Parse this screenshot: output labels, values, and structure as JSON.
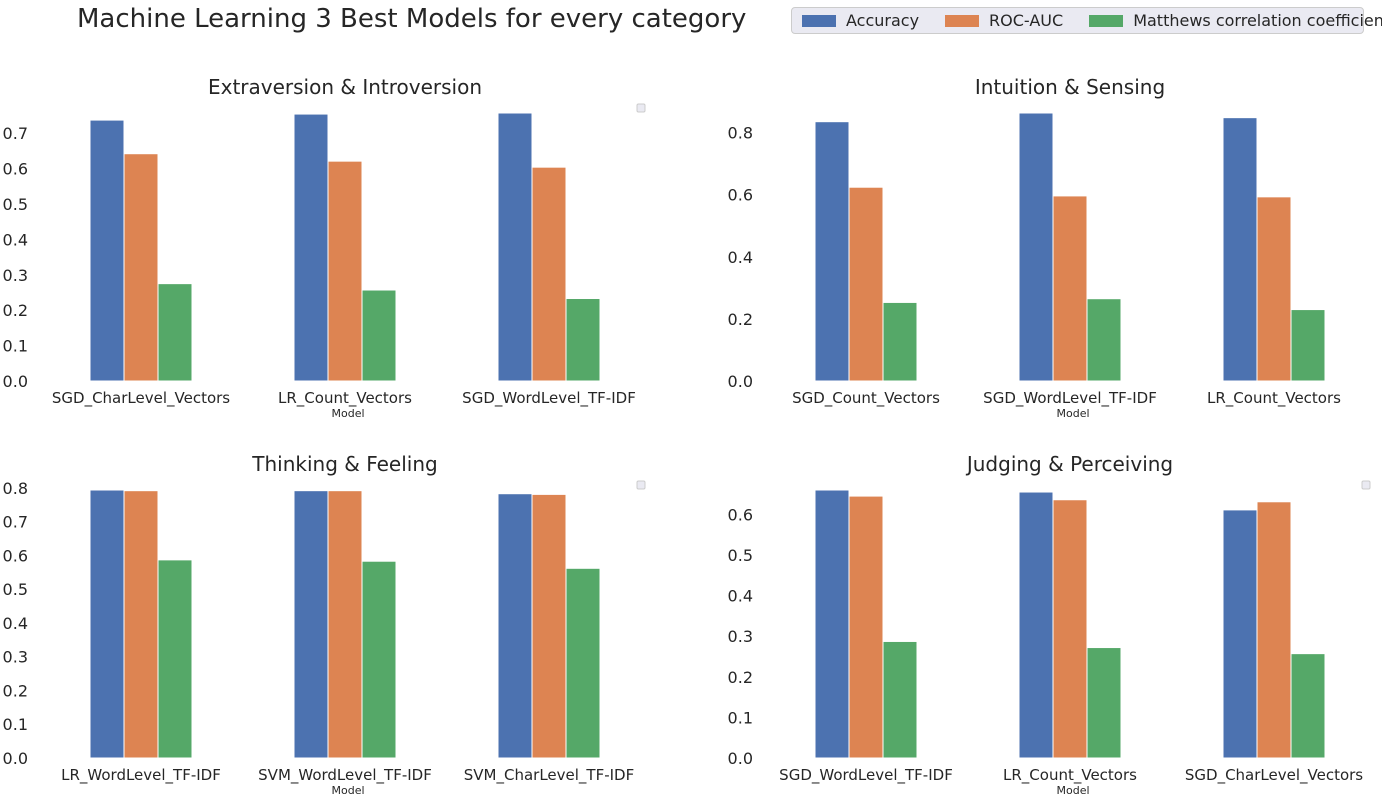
{
  "title": "Machine Learning 3 Best Models for every category",
  "legend": {
    "items": [
      {
        "label": "Accuracy",
        "color": "#4c72b0"
      },
      {
        "label": "ROC-AUC",
        "color": "#dd8452"
      },
      {
        "label": "Matthews correlation coefficient",
        "color": "#55a868"
      }
    ]
  },
  "chart_data": [
    {
      "type": "bar",
      "title": "Extraversion & Introversion",
      "xlabel": "Model",
      "categories": [
        "SGD_CharLevel_Vectors",
        "LR_Count_Vectors",
        "SGD_WordLevel_TF-IDF"
      ],
      "series": [
        {
          "name": "Accuracy",
          "values": [
            0.737,
            0.754,
            0.757
          ]
        },
        {
          "name": "ROC-AUC",
          "values": [
            0.642,
            0.621,
            0.604
          ]
        },
        {
          "name": "Matthews correlation coefficient",
          "values": [
            0.275,
            0.257,
            0.233
          ]
        }
      ],
      "ylim": [
        0,
        0.757
      ],
      "yticks": [
        0.0,
        0.1,
        0.2,
        0.3,
        0.4,
        0.5,
        0.6,
        0.7
      ],
      "ytick_labels": [
        "0.0",
        "0.1",
        "0.2",
        "0.3",
        "0.4",
        "0.5",
        "0.6",
        "0.7"
      ]
    },
    {
      "type": "bar",
      "title": "Intuition & Sensing",
      "xlabel": "Model",
      "categories": [
        "SGD_Count_Vectors",
        "SGD_WordLevel_TF-IDF",
        "LR_Count_Vectors"
      ],
      "series": [
        {
          "name": "Accuracy",
          "values": [
            0.835,
            0.863,
            0.848
          ]
        },
        {
          "name": "ROC-AUC",
          "values": [
            0.624,
            0.596,
            0.593
          ]
        },
        {
          "name": "Matthews correlation coefficient",
          "values": [
            0.253,
            0.265,
            0.23
          ]
        }
      ],
      "ylim": [
        0,
        0.863
      ],
      "yticks": [
        0.0,
        0.2,
        0.4,
        0.6,
        0.8
      ],
      "ytick_labels": [
        "0.0",
        "0.2",
        "0.4",
        "0.6",
        "0.8"
      ]
    },
    {
      "type": "bar",
      "title": "Thinking & Feeling",
      "xlabel": "Model",
      "categories": [
        "LR_WordLevel_TF-IDF",
        "SVM_WordLevel_TF-IDF",
        "SVM_CharLevel_TF-IDF"
      ],
      "series": [
        {
          "name": "Accuracy",
          "values": [
            0.794,
            0.792,
            0.783
          ]
        },
        {
          "name": "ROC-AUC",
          "values": [
            0.792,
            0.792,
            0.781
          ]
        },
        {
          "name": "Matthews correlation coefficient",
          "values": [
            0.587,
            0.583,
            0.562
          ]
        }
      ],
      "ylim": [
        0,
        0.794
      ],
      "yticks": [
        0.0,
        0.1,
        0.2,
        0.3,
        0.4,
        0.5,
        0.6,
        0.7,
        0.8
      ],
      "ytick_labels": [
        "0.0",
        "0.1",
        "0.2",
        "0.3",
        "0.4",
        "0.5",
        "0.6",
        "0.7",
        "0.8"
      ]
    },
    {
      "type": "bar",
      "title": "Judging & Perceiving",
      "xlabel": "Model",
      "categories": [
        "SGD_WordLevel_TF-IDF",
        "LR_Count_Vectors",
        "SGD_CharLevel_Vectors"
      ],
      "series": [
        {
          "name": "Accuracy",
          "values": [
            0.66,
            0.655,
            0.611
          ]
        },
        {
          "name": "ROC-AUC",
          "values": [
            0.645,
            0.636,
            0.631
          ]
        },
        {
          "name": "Matthews correlation coefficient",
          "values": [
            0.287,
            0.272,
            0.257
          ]
        }
      ],
      "ylim": [
        0,
        0.66
      ],
      "yticks": [
        0.0,
        0.1,
        0.2,
        0.3,
        0.4,
        0.5,
        0.6
      ],
      "ytick_labels": [
        "0.0",
        "0.1",
        "0.2",
        "0.3",
        "0.4",
        "0.5",
        "0.6"
      ]
    }
  ]
}
